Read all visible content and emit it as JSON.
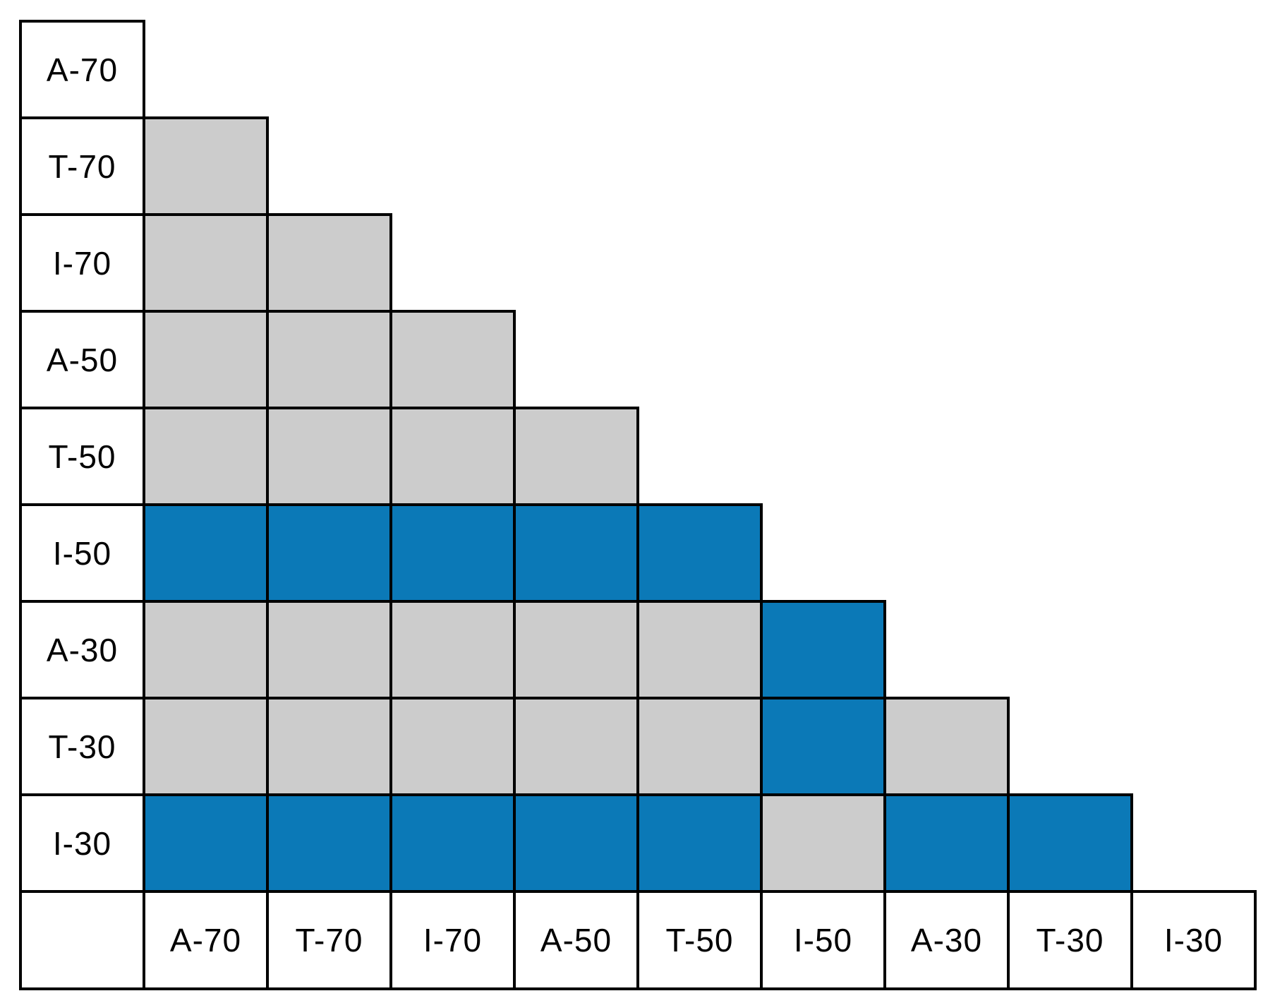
{
  "chart_data": {
    "type": "heatmap",
    "title": "",
    "xlabel": "",
    "ylabel": "",
    "layout": "lower-triangular pairwise matrix, diagonal and upper triangle empty; grid on, no legend",
    "row_labels": [
      "A-70",
      "T-70",
      "I-70",
      "A-50",
      "T-50",
      "I-50",
      "A-30",
      "T-30",
      "I-30"
    ],
    "col_labels": [
      "A-70",
      "T-70",
      "I-70",
      "A-50",
      "T-50",
      "I-50",
      "A-30",
      "T-30",
      "I-30"
    ],
    "cell_colors": {
      "gray": "#cccccc",
      "blue": "#0b79b7"
    },
    "border_color": "#000000",
    "matrix": [
      {
        "row": "A-70",
        "cells": []
      },
      {
        "row": "T-70",
        "cells": [
          "gray"
        ]
      },
      {
        "row": "I-70",
        "cells": [
          "gray",
          "gray"
        ]
      },
      {
        "row": "A-50",
        "cells": [
          "gray",
          "gray",
          "gray"
        ]
      },
      {
        "row": "T-50",
        "cells": [
          "gray",
          "gray",
          "gray",
          "gray"
        ]
      },
      {
        "row": "I-50",
        "cells": [
          "blue",
          "blue",
          "blue",
          "blue",
          "blue"
        ]
      },
      {
        "row": "A-30",
        "cells": [
          "gray",
          "gray",
          "gray",
          "gray",
          "gray",
          "blue"
        ]
      },
      {
        "row": "T-30",
        "cells": [
          "gray",
          "gray",
          "gray",
          "gray",
          "gray",
          "blue",
          "gray"
        ]
      },
      {
        "row": "I-30",
        "cells": [
          "blue",
          "blue",
          "blue",
          "blue",
          "blue",
          "gray",
          "blue",
          "blue"
        ]
      }
    ]
  }
}
